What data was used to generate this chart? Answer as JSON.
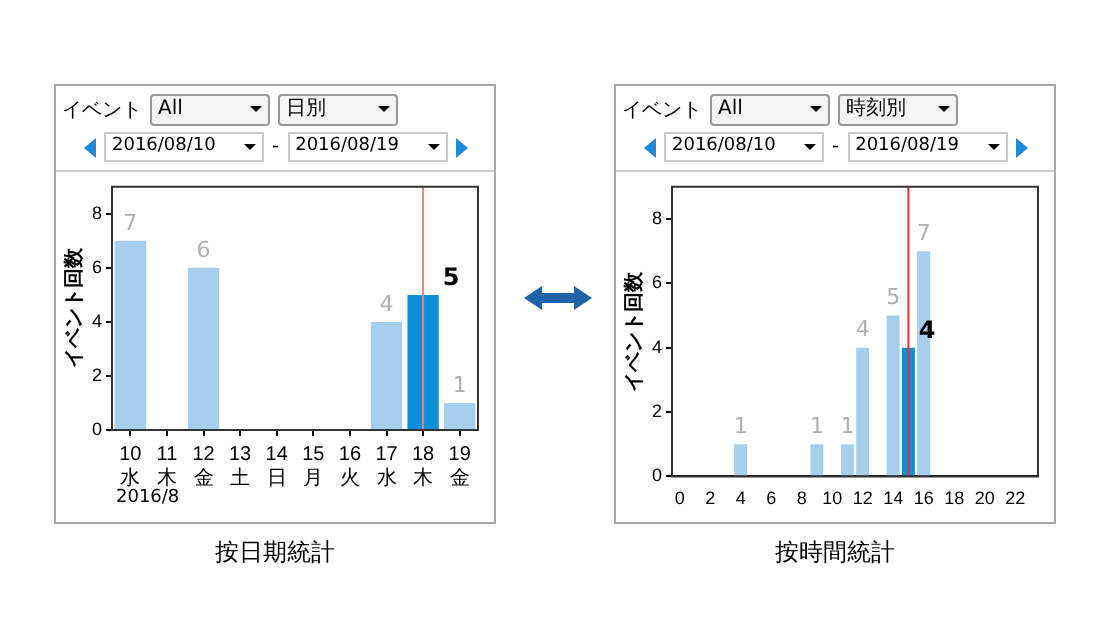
{
  "chart_data": [
    {
      "type": "bar",
      "ylabel": "イベント回数",
      "categories": [
        "10\n水",
        "11\n木",
        "12\n金",
        "13\n土",
        "14\n日",
        "15\n月",
        "16\n火",
        "17\n水",
        "18\n木",
        "19\n金"
      ],
      "values": [
        7,
        0,
        6,
        0,
        0,
        0,
        0,
        4,
        5,
        1
      ],
      "colors": [
        "#a6cfee",
        "#a6cfee",
        "#a6cfee",
        "#a6cfee",
        "#a6cfee",
        "#a6cfee",
        "#a6cfee",
        "#a6cfee",
        "#0b8fd6",
        "#a6cfee"
      ],
      "value_labels": [
        "7",
        null,
        "6",
        null,
        null,
        null,
        null,
        "4",
        "5",
        "1"
      ],
      "ylim": [
        0,
        9
      ],
      "yticks": [
        0,
        2,
        4,
        6,
        8
      ],
      "grid": false,
      "legend": false,
      "ref_lines": [
        {
          "axis": "x",
          "value": "18\n木",
          "color": "#f08080"
        }
      ],
      "annotations": [
        "イベント",
        "All",
        "日別",
        "2016/08/10",
        "-",
        "2016/08/19",
        "2016/8",
        "按日期統計"
      ]
    },
    {
      "type": "bar",
      "ylabel": "イベント回数",
      "x": [
        0,
        1,
        2,
        3,
        4,
        5,
        6,
        7,
        8,
        9,
        10,
        11,
        12,
        13,
        14,
        15,
        16,
        17,
        18,
        19,
        20,
        21,
        22,
        23
      ],
      "values": [
        0,
        0,
        0,
        0,
        1,
        0,
        0,
        0,
        0,
        1,
        0,
        1,
        4,
        0,
        5,
        4,
        7,
        0,
        0,
        0,
        0,
        0,
        0,
        0
      ],
      "colors": [
        "#a6cfee",
        "#a6cfee",
        "#a6cfee",
        "#a6cfee",
        "#a6cfee",
        "#a6cfee",
        "#a6cfee",
        "#a6cfee",
        "#a6cfee",
        "#a6cfee",
        "#a6cfee",
        "#a6cfee",
        "#a6cfee",
        "#a6cfee",
        "#a6cfee",
        "#0b8fd6",
        "#a6cfee",
        "#a6cfee",
        "#a6cfee",
        "#a6cfee",
        "#a6cfee",
        "#a6cfee",
        "#a6cfee",
        "#a6cfee"
      ],
      "value_labels": [
        null,
        null,
        null,
        null,
        "1",
        null,
        null,
        null,
        null,
        "1",
        null,
        "1",
        "4",
        null,
        "5",
        "4",
        "7",
        null,
        null,
        null,
        null,
        null,
        null,
        null
      ],
      "xlim": [
        -0.5,
        23.5
      ],
      "xticks": [
        0,
        2,
        4,
        6,
        8,
        10,
        12,
        14,
        16,
        18,
        20,
        22
      ],
      "ylim": [
        0,
        9
      ],
      "yticks": [
        0,
        2,
        4,
        6,
        8
      ],
      "grid": false,
      "legend": false,
      "ref_lines": [
        {
          "axis": "x",
          "value": 15,
          "color": "#f03030"
        }
      ],
      "annotations": [
        "イベント",
        "All",
        "時刻別",
        "2016/08/10",
        "-",
        "2016/08/19",
        "按時間統計"
      ]
    }
  ]
}
